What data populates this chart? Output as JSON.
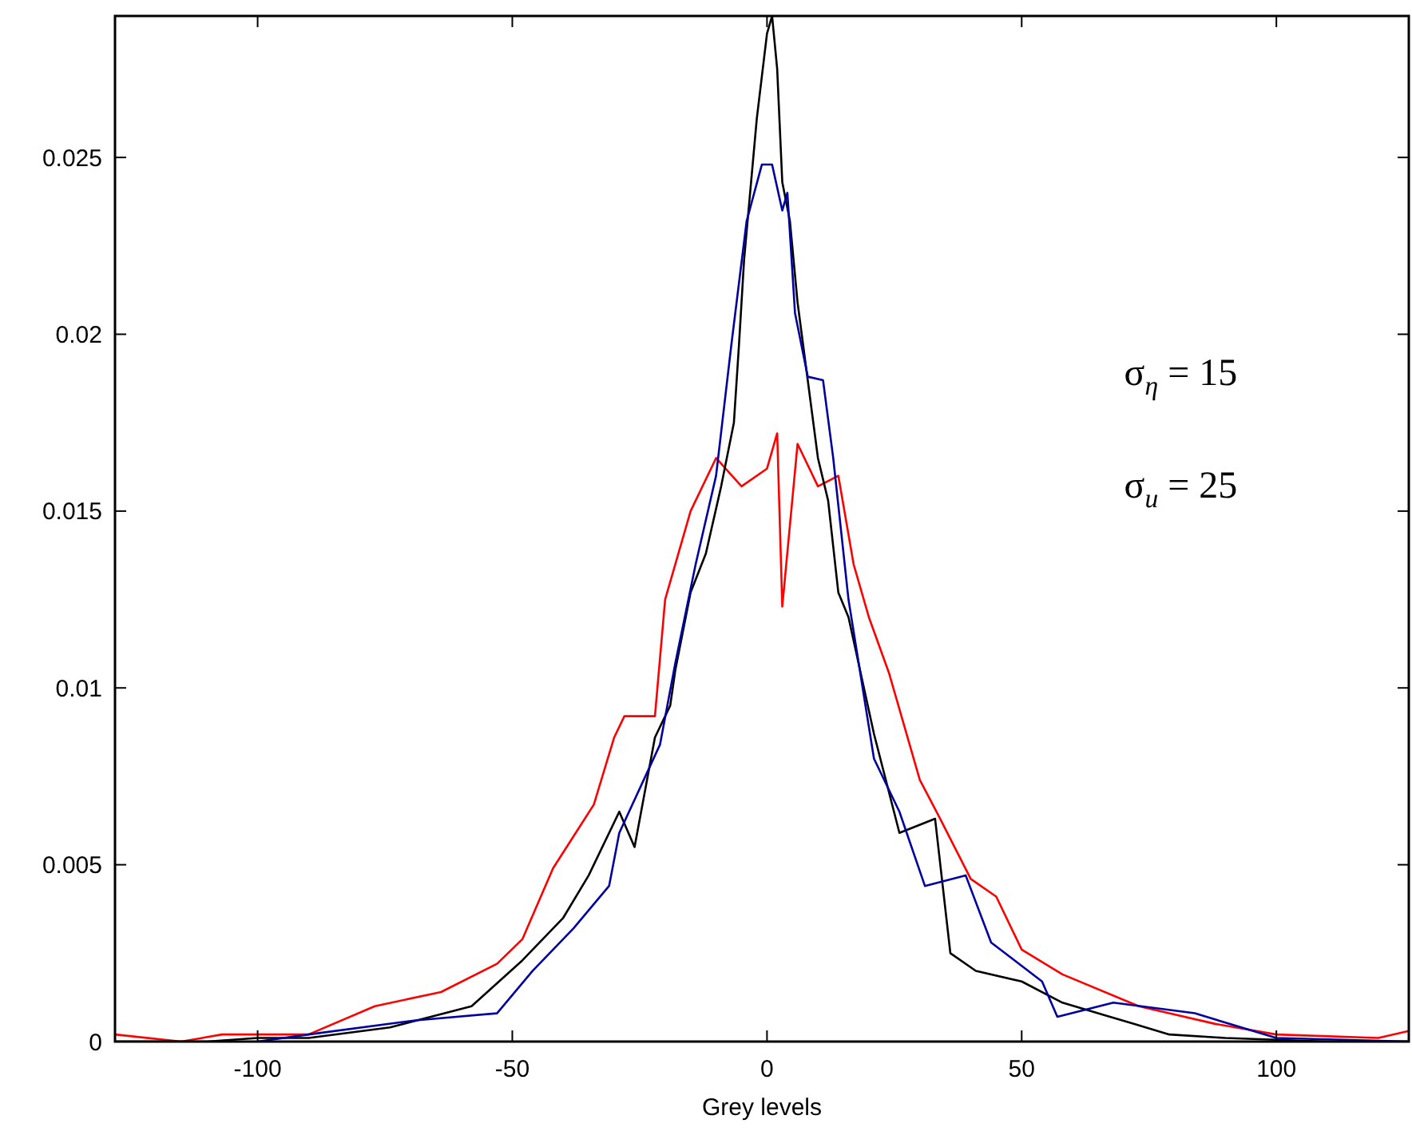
{
  "chart_data": {
    "type": "line",
    "xlabel": "Grey levels",
    "xlim": [
      -128,
      126
    ],
    "xticks": [
      -100,
      -50,
      0,
      50,
      100
    ],
    "ylim": [
      0,
      0.029
    ],
    "yticks": [
      0,
      0.005,
      0.01,
      0.015,
      0.02,
      0.025
    ],
    "grid": false,
    "marker": "none",
    "line_style": "solid",
    "annotations": [
      "σ$_{η}$ = 15",
      "σ$_{u}$ = 25"
    ],
    "series": [
      {
        "color": "#ff0000",
        "x": [
          -128,
          -115,
          -107,
          -90,
          -77,
          -64,
          -53,
          -48,
          -42,
          -34,
          -30,
          -28,
          -22,
          -20,
          -18,
          -15,
          -10,
          -5,
          0,
          2,
          3,
          6,
          10,
          14,
          17,
          20,
          24,
          30,
          34,
          40,
          45,
          50,
          58,
          73,
          88,
          100,
          120,
          126
        ],
        "values": [
          0.0002,
          0,
          0.0002,
          0.0002,
          0.001,
          0.0014,
          0.0022,
          0.0029,
          0.0049,
          0.0067,
          0.0086,
          0.0092,
          0.0092,
          0.0125,
          0.0135,
          0.015,
          0.0165,
          0.0157,
          0.0162,
          0.0172,
          0.0123,
          0.0169,
          0.0157,
          0.016,
          0.0135,
          0.012,
          0.0104,
          0.0074,
          0.0063,
          0.0046,
          0.0041,
          0.0026,
          0.0019,
          0.001,
          0.0005,
          0.0002,
          0.0001,
          0.0003
        ]
      },
      {
        "color": "#000000",
        "x": [
          -128,
          -110,
          -100,
          -90,
          -74,
          -58,
          -48,
          -40,
          -35,
          -29,
          -26,
          -22,
          -19,
          -18,
          -15,
          -12,
          -9,
          -6.5,
          -5.5,
          -4.5,
          -2,
          0,
          1,
          2,
          3,
          4.5,
          6,
          8,
          10,
          12,
          14,
          16,
          21,
          26,
          33,
          36,
          41,
          50,
          58,
          72,
          79,
          90,
          110,
          126
        ],
        "values": [
          0,
          0,
          0.0001,
          0.0001,
          0.0004,
          0.001,
          0.0023,
          0.0035,
          0.0047,
          0.0065,
          0.0055,
          0.0086,
          0.0095,
          0.0105,
          0.0127,
          0.0138,
          0.0157,
          0.0175,
          0.0197,
          0.0221,
          0.0261,
          0.0285,
          0.029,
          0.0275,
          0.0243,
          0.0232,
          0.0209,
          0.0187,
          0.0165,
          0.0153,
          0.0127,
          0.012,
          0.0087,
          0.0059,
          0.0063,
          0.0025,
          0.002,
          0.0017,
          0.0011,
          0.0005,
          0.0002,
          0.0001,
          0,
          0
        ]
      },
      {
        "color": "#0000a0",
        "x": [
          -100,
          -90,
          -69,
          -53,
          -46,
          -38,
          -31,
          -29,
          -21,
          -18,
          -14,
          -10,
          -7,
          -4,
          -1,
          1,
          3,
          4,
          5.5,
          8,
          11,
          13,
          16,
          21,
          26,
          31,
          39,
          44,
          54,
          57,
          68,
          84,
          100,
          126
        ],
        "values": [
          0,
          0.0002,
          0.0006,
          0.0008,
          0.002,
          0.0032,
          0.0044,
          0.0059,
          0.0084,
          0.0107,
          0.0135,
          0.016,
          0.0197,
          0.0232,
          0.0248,
          0.0248,
          0.0235,
          0.024,
          0.0206,
          0.0188,
          0.0187,
          0.0165,
          0.0125,
          0.008,
          0.0065,
          0.0044,
          0.0047,
          0.0028,
          0.0017,
          0.0007,
          0.0011,
          0.0008,
          0.0001,
          0
        ]
      }
    ]
  }
}
